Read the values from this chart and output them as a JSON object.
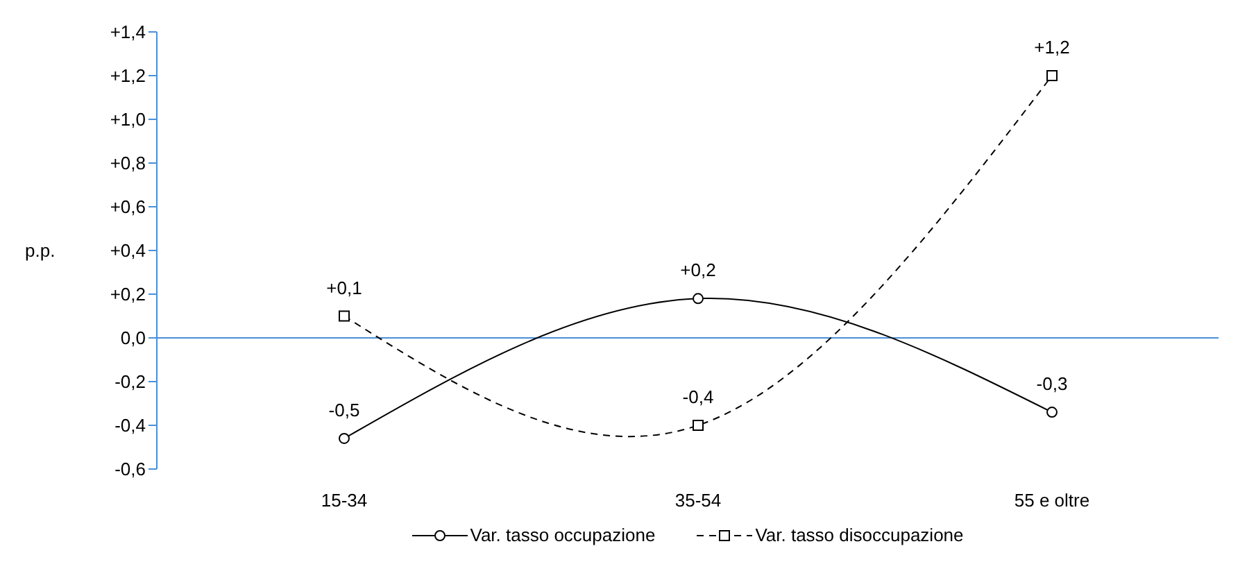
{
  "chart_data": {
    "type": "line",
    "ylabel": "p.p.",
    "categories": [
      "15-34",
      "35-54",
      "55 e oltre"
    ],
    "series": [
      {
        "name": "Var. tasso occupazione",
        "color": "#000000",
        "marker": "circle",
        "line_style": "solid",
        "values": [
          -0.46,
          0.18,
          -0.34
        ],
        "value_labels": [
          "-0,5",
          "+0,2",
          "-0,3"
        ]
      },
      {
        "name": "Var. tasso disoccupazione",
        "color": "#000000",
        "marker": "square",
        "line_style": "dashed",
        "values": [
          0.1,
          -0.4,
          1.2
        ],
        "value_labels": [
          "+0,1",
          "-0,4",
          "+1,2"
        ]
      }
    ],
    "ylim": [
      -0.6,
      1.4
    ],
    "yticks": [
      {
        "value": -0.6,
        "label": "-0,6"
      },
      {
        "value": -0.4,
        "label": "-0,4"
      },
      {
        "value": -0.2,
        "label": "-0,2"
      },
      {
        "value": 0,
        "label": "0,0"
      },
      {
        "value": 0.2,
        "label": "+0,2"
      },
      {
        "value": 0.4,
        "label": "+0,4"
      },
      {
        "value": 0.6,
        "label": "+0,6"
      },
      {
        "value": 0.8,
        "label": "+0,8"
      },
      {
        "value": 1,
        "label": "+1,0"
      },
      {
        "value": 1.2,
        "label": "+1,2"
      },
      {
        "value": 1.4,
        "label": "+1,4"
      }
    ],
    "ref_lines": [
      {
        "axis": "y",
        "value": 0,
        "color": "#4a8fd8"
      }
    ],
    "grid": false,
    "legend": "bottom"
  }
}
